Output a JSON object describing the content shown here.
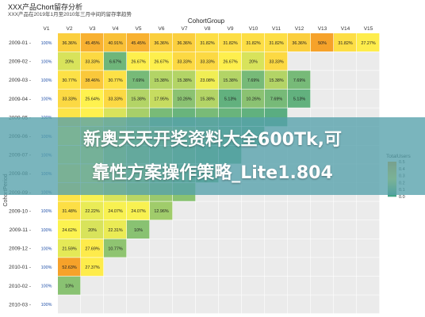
{
  "title": "XXX产品Chort留存分析",
  "subtitle": "XXX产品在2019年1月至2010年三月中间的留存率趋势",
  "banner": {
    "line1": "新奥天天开奖资料大全600Tk,可",
    "line2": "靠性方案操作策略_Lite1.804"
  },
  "chart_data": {
    "type": "heatmap",
    "x_group_label": "CohortGroup",
    "ylabel": "CohortPeriod",
    "columns": [
      "V1",
      "V2",
      "V3",
      "V4",
      "V5",
      "V6",
      "V7",
      "V8",
      "V9",
      "V10",
      "V11",
      "V12",
      "V13",
      "V14",
      "V15"
    ],
    "rows": [
      "2009-01",
      "2009-02",
      "2009-03",
      "2009-04",
      "2009-05",
      "2009-06",
      "2009-07",
      "2009-08",
      "2009-09",
      "2009-10",
      "2009-11",
      "2009-12",
      "2010-01",
      "2010-02",
      "2010-03"
    ],
    "cells": [
      [
        "100%",
        "36.36%",
        "45.45%",
        "40.91%",
        "45.45%",
        "36.36%",
        "36.36%",
        "31.82%",
        "31.82%",
        "31.82%",
        "31.82%",
        "36.36%",
        "50%",
        "31.82%",
        "27.27%"
      ],
      [
        "100%",
        "20%",
        "33.33%",
        "6.67%",
        "26.67%",
        "26.67%",
        "33.33%",
        "33.33%",
        "26.67%",
        "20%",
        "33.33%",
        "",
        "",
        "",
        ""
      ],
      [
        "100%",
        "30.77%",
        "38.46%",
        "30.77%",
        "7.69%",
        "15.38%",
        "15.38%",
        "23.08%",
        "15.38%",
        "7.69%",
        "15.38%",
        "7.69%",
        "",
        "",
        ""
      ],
      [
        "100%",
        "33.33%",
        "25.64%",
        "33.33%",
        "15.38%",
        "17.95%",
        "10.26%",
        "15.38%",
        "5.13%",
        "10.26%",
        "7.69%",
        "5.13%",
        "",
        "",
        ""
      ],
      [
        "100%",
        "",
        "",
        "",
        "",
        "",
        "",
        "",
        "",
        "",
        "",
        "",
        "",
        "",
        ""
      ],
      [
        "100%",
        "",
        "",
        "",
        "",
        "",
        "",
        "",
        "",
        "",
        "",
        "",
        "",
        "",
        ""
      ],
      [
        "100%",
        "",
        "",
        "",
        "",
        "",
        "",
        "",
        "",
        "",
        "",
        "",
        "",
        "",
        ""
      ],
      [
        "100%",
        "",
        "",
        "",
        "",
        "",
        "",
        "",
        "",
        "",
        "",
        "",
        "",
        "",
        ""
      ],
      [
        "100%",
        "",
        "",
        "",
        "",
        "",
        "",
        "",
        "",
        "",
        "",
        "",
        "",
        "",
        ""
      ],
      [
        "100%",
        "31.48%",
        "22.22%",
        "24.07%",
        "24.07%",
        "12.96%",
        "",
        "",
        "",
        "",
        "",
        "",
        "",
        "",
        ""
      ],
      [
        "100%",
        "24.62%",
        "20%",
        "22.31%",
        "10%",
        "",
        "",
        "",
        "",
        "",
        "",
        "",
        "",
        "",
        ""
      ],
      [
        "100%",
        "21.59%",
        "27.69%",
        "10.77%",
        "",
        "",
        "",
        "",
        "",
        "",
        "",
        "",
        "",
        "",
        ""
      ],
      [
        "100%",
        "52.63%",
        "27.37%",
        "",
        "",
        "",
        "",
        "",
        "",
        "",
        "",
        "",
        "",
        "",
        ""
      ],
      [
        "100%",
        "10%",
        "",
        "",
        "",
        "",
        "",
        "",
        "",
        "",
        "",
        "",
        "",
        "",
        ""
      ],
      [
        "100%",
        "",
        "",
        "",
        "",
        "",
        "",
        "",
        "",
        "",
        "",
        "",
        "",
        "",
        ""
      ]
    ],
    "values": [
      [
        1,
        0.3636,
        0.4545,
        0.4091,
        0.4545,
        0.3636,
        0.3636,
        0.3182,
        0.3182,
        0.3182,
        0.3182,
        0.3636,
        0.5,
        0.3182,
        0.2727
      ],
      [
        1,
        0.2,
        0.3333,
        0.0667,
        0.2667,
        0.2667,
        0.3333,
        0.3333,
        0.2667,
        0.2,
        0.3333,
        null,
        null,
        null,
        null
      ],
      [
        1,
        0.3077,
        0.3846,
        0.3077,
        0.0769,
        0.1538,
        0.1538,
        0.2308,
        0.1538,
        0.0769,
        0.1538,
        0.0769,
        null,
        null,
        null
      ],
      [
        1,
        0.3333,
        0.2564,
        0.3333,
        0.1538,
        0.1795,
        0.1026,
        0.1538,
        0.0513,
        0.1026,
        0.0769,
        0.0513,
        null,
        null,
        null
      ],
      [
        1,
        0.3,
        0.26,
        0.2,
        0.14,
        0.08,
        0.06,
        0.08,
        0.06,
        0.05,
        0.04,
        null,
        null,
        null,
        null
      ],
      [
        1,
        0.25,
        0.2,
        0.18,
        0.14,
        0.12,
        0.1,
        0.08,
        0.06,
        0.05,
        null,
        null,
        null,
        null,
        null
      ],
      [
        1,
        0.24,
        0.22,
        0.16,
        0.12,
        0.1,
        0.08,
        0.06,
        0.05,
        null,
        null,
        null,
        null,
        null,
        null
      ],
      [
        1,
        0.28,
        0.24,
        0.18,
        0.14,
        0.1,
        0.08,
        0.06,
        null,
        null,
        null,
        null,
        null,
        null,
        null
      ],
      [
        1,
        0.3,
        0.24,
        0.2,
        0.16,
        0.12,
        0.1,
        null,
        null,
        null,
        null,
        null,
        null,
        null,
        null
      ],
      [
        1,
        0.3148,
        0.2222,
        0.2407,
        0.2407,
        0.1296,
        null,
        null,
        null,
        null,
        null,
        null,
        null,
        null,
        null
      ],
      [
        1,
        0.2462,
        0.2,
        0.2231,
        0.1,
        null,
        null,
        null,
        null,
        null,
        null,
        null,
        null,
        null,
        null
      ],
      [
        1,
        0.2159,
        0.2769,
        0.1077,
        null,
        null,
        null,
        null,
        null,
        null,
        null,
        null,
        null,
        null,
        null
      ],
      [
        1,
        0.5263,
        0.2737,
        null,
        null,
        null,
        null,
        null,
        null,
        null,
        null,
        null,
        null,
        null,
        null
      ],
      [
        1,
        0.1,
        null,
        null,
        null,
        null,
        null,
        null,
        null,
        null,
        null,
        null,
        null,
        null,
        null
      ],
      [
        1,
        null,
        null,
        null,
        null,
        null,
        null,
        null,
        null,
        null,
        null,
        null,
        null,
        null,
        null
      ]
    ],
    "legend": {
      "title": "TotalUsers",
      "ticks": [
        "0.5",
        "0.4",
        "0.3",
        "0.2",
        "0.1",
        "0.0"
      ],
      "placement": "right"
    },
    "colors": {
      "first_col": "#ffffff",
      "high": "#f6a22a",
      "mid": "#fff44f",
      "low": "#3aa08a",
      "empty": "#ebebeb"
    }
  }
}
